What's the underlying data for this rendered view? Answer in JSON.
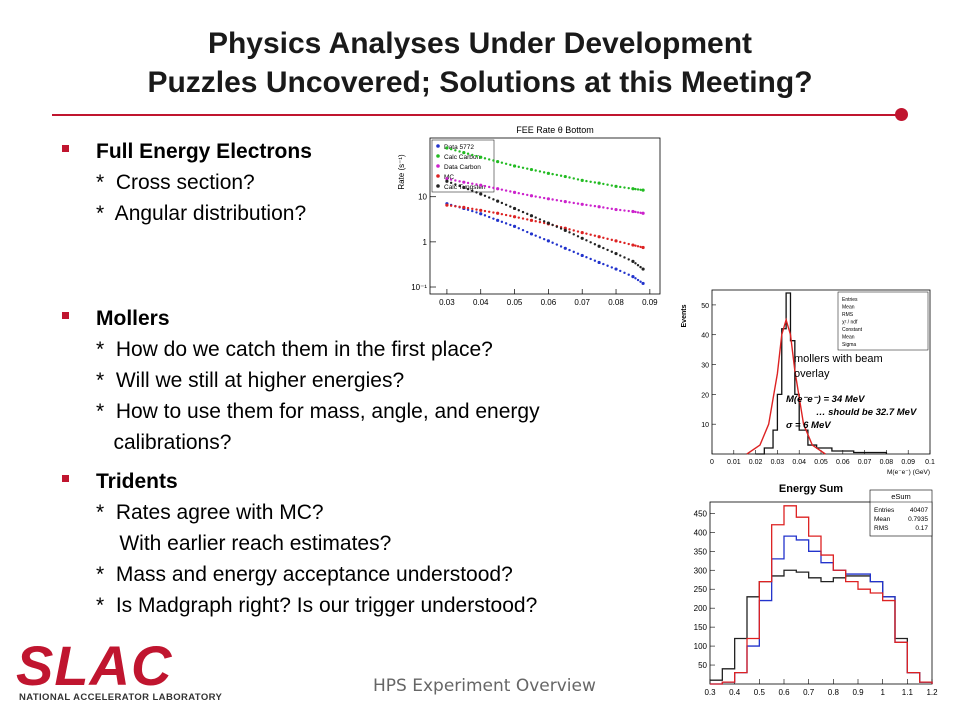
{
  "title": {
    "line1": "Physics Analyses Under Development",
    "line2": "Puzzles Uncovered; Solutions at this Meeting?"
  },
  "bullets": [
    {
      "heading": "Full Energy Electrons",
      "lines": [
        "*  Cross section?",
        "*  Angular distribution?"
      ]
    },
    {
      "heading": "Mollers",
      "lines": [
        "*  How do we catch them in the first place?",
        "*  Will we still at higher energies?",
        "*  How to use them for mass, angle, and energy",
        "   calibrations?"
      ]
    },
    {
      "heading": "Tridents",
      "lines": [
        "*  Rates agree with MC?",
        "    With earlier reach estimates?",
        "*  Mass and energy acceptance understood?",
        "*  Is Madgraph right? Is our trigger understood?"
      ]
    }
  ],
  "footer": "HPS Experiment Overview",
  "logo": {
    "word": "SLAC",
    "sub": "NATIONAL ACCELERATOR LABORATORY"
  },
  "colors": {
    "accent": "#c0152f"
  },
  "chart_data": [
    {
      "type": "scatter",
      "title": "FEE Rate θ Bottom",
      "ylabel": "Rate (s⁻¹)",
      "ylog": true,
      "xlim": [
        0.025,
        0.093
      ],
      "ylim": [
        0.07,
        200
      ],
      "xticks": [
        "0.03",
        "0.04",
        "0.05",
        "0.06",
        "0.07",
        "0.08",
        "0.09"
      ],
      "yticks": [
        "10⁻¹",
        "1",
        "10"
      ],
      "legend": [
        "Data 5772",
        "Calc Carbon",
        "Data Carbon",
        "MC",
        "Calc Tungsten"
      ],
      "series": [
        {
          "name": "Data 5772",
          "color": "#2233cc",
          "x": [
            0.03,
            0.035,
            0.04,
            0.045,
            0.05,
            0.055,
            0.06,
            0.065,
            0.07,
            0.075,
            0.08,
            0.085,
            0.088
          ],
          "y": [
            7,
            5.5,
            4.2,
            3,
            2.2,
            1.5,
            1.05,
            0.72,
            0.5,
            0.35,
            0.25,
            0.17,
            0.12
          ]
        },
        {
          "name": "Calc Carbon",
          "color": "#22bb22",
          "x": [
            0.03,
            0.035,
            0.04,
            0.045,
            0.05,
            0.055,
            0.06,
            0.065,
            0.07,
            0.075,
            0.08,
            0.085,
            0.088
          ],
          "y": [
            120,
            95,
            75,
            60,
            48,
            40,
            33,
            28,
            23,
            20,
            17,
            15,
            14
          ]
        },
        {
          "name": "Data Carbon",
          "color": "#cc22cc",
          "x": [
            0.03,
            0.035,
            0.04,
            0.045,
            0.05,
            0.055,
            0.06,
            0.065,
            0.07,
            0.075,
            0.08,
            0.085,
            0.088
          ],
          "y": [
            25,
            21,
            18,
            15,
            12.5,
            10.5,
            9,
            7.8,
            6.8,
            6,
            5.2,
            4.7,
            4.3
          ]
        },
        {
          "name": "MC",
          "color": "#dd2222",
          "x": [
            0.03,
            0.035,
            0.04,
            0.045,
            0.05,
            0.055,
            0.06,
            0.065,
            0.07,
            0.075,
            0.08,
            0.085,
            0.088
          ],
          "y": [
            6.5,
            5.8,
            5,
            4.3,
            3.6,
            3,
            2.5,
            2,
            1.6,
            1.3,
            1.05,
            0.85,
            0.75
          ]
        },
        {
          "name": "Calc Tungsten",
          "color": "#222222",
          "x": [
            0.03,
            0.035,
            0.04,
            0.045,
            0.05,
            0.055,
            0.06,
            0.065,
            0.07,
            0.075,
            0.08,
            0.085,
            0.088
          ],
          "y": [
            22,
            16,
            11.5,
            8,
            5.5,
            3.8,
            2.6,
            1.8,
            1.2,
            0.8,
            0.55,
            0.37,
            0.25
          ]
        }
      ]
    },
    {
      "type": "line",
      "title": "",
      "xlabel": "M(e⁻e⁻) (GeV)",
      "ylabel": "Events",
      "xlim": [
        0,
        0.1
      ],
      "ylim": [
        0,
        55
      ],
      "xticks": [
        "0",
        "0.01",
        "0.02",
        "0.03",
        "0.04",
        "0.05",
        "0.06",
        "0.07",
        "0.08",
        "0.09",
        "0.1"
      ],
      "yticks": [
        "10",
        "20",
        "30",
        "40",
        "50"
      ],
      "annotations": [
        "mollers with beam",
        "overlay",
        "M(e⁻e⁻) = 34 MeV",
        "… should be 32.7 MeV",
        "σ = 6 MeV"
      ],
      "stats": [
        "Entries",
        "Mean",
        "RMS",
        "χ² / ndf",
        "Constant",
        "Mean",
        "Sigma"
      ],
      "series": [
        {
          "name": "histogram",
          "color": "#111111",
          "x": [
            0.02,
            0.024,
            0.028,
            0.03,
            0.032,
            0.034,
            0.036,
            0.038,
            0.04,
            0.044,
            0.048,
            0.055,
            0.065,
            0.08
          ],
          "y": [
            0,
            2,
            8,
            20,
            42,
            54,
            38,
            20,
            8,
            3,
            2,
            1,
            0.5,
            0
          ]
        },
        {
          "name": "fit",
          "color": "#dd2222",
          "x": [
            0.016,
            0.022,
            0.026,
            0.03,
            0.032,
            0.034,
            0.036,
            0.038,
            0.042,
            0.046,
            0.052
          ],
          "y": [
            0,
            3,
            10,
            27,
            40,
            45,
            40,
            28,
            10,
            3,
            0
          ]
        }
      ]
    },
    {
      "type": "line",
      "title": "Energy Sum",
      "xlim": [
        0.3,
        1.2
      ],
      "ylim": [
        0,
        480
      ],
      "xticks": [
        "0.3",
        "0.4",
        "0.5",
        "0.6",
        "0.7",
        "0.8",
        "0.9",
        "1",
        "1.1",
        "1.2"
      ],
      "yticks": [
        "50",
        "100",
        "150",
        "200",
        "250",
        "300",
        "350",
        "400",
        "450"
      ],
      "stats_title": "eSum",
      "stats": [
        {
          "label": "Entries",
          "value": "40407"
        },
        {
          "label": "Mean",
          "value": "0.7935"
        },
        {
          "label": "RMS",
          "value": "0.17"
        }
      ],
      "series": [
        {
          "name": "black",
          "color": "#222222",
          "x": [
            0.3,
            0.35,
            0.4,
            0.45,
            0.5,
            0.55,
            0.6,
            0.65,
            0.7,
            0.75,
            0.8,
            0.85,
            0.9,
            0.95,
            1.0,
            1.05,
            1.1,
            1.15,
            1.2
          ],
          "y": [
            10,
            40,
            120,
            230,
            270,
            285,
            300,
            295,
            280,
            270,
            280,
            285,
            285,
            270,
            230,
            120,
            30,
            5,
            0
          ]
        },
        {
          "name": "blue",
          "color": "#2233cc",
          "x": [
            0.3,
            0.35,
            0.4,
            0.45,
            0.5,
            0.55,
            0.6,
            0.65,
            0.7,
            0.75,
            0.8,
            0.85,
            0.9,
            0.95,
            1.0,
            1.05,
            1.1,
            1.15,
            1.2
          ],
          "y": [
            0,
            5,
            30,
            100,
            220,
            330,
            390,
            380,
            350,
            320,
            300,
            290,
            290,
            270,
            230,
            110,
            30,
            5,
            0
          ]
        },
        {
          "name": "red",
          "color": "#dd2222",
          "x": [
            0.3,
            0.35,
            0.4,
            0.45,
            0.5,
            0.55,
            0.6,
            0.65,
            0.7,
            0.75,
            0.8,
            0.85,
            0.9,
            0.95,
            1.0,
            1.05,
            1.1,
            1.15,
            1.2
          ],
          "y": [
            0,
            5,
            30,
            120,
            270,
            420,
            470,
            440,
            390,
            340,
            300,
            270,
            250,
            240,
            220,
            110,
            30,
            5,
            0
          ]
        }
      ]
    }
  ]
}
